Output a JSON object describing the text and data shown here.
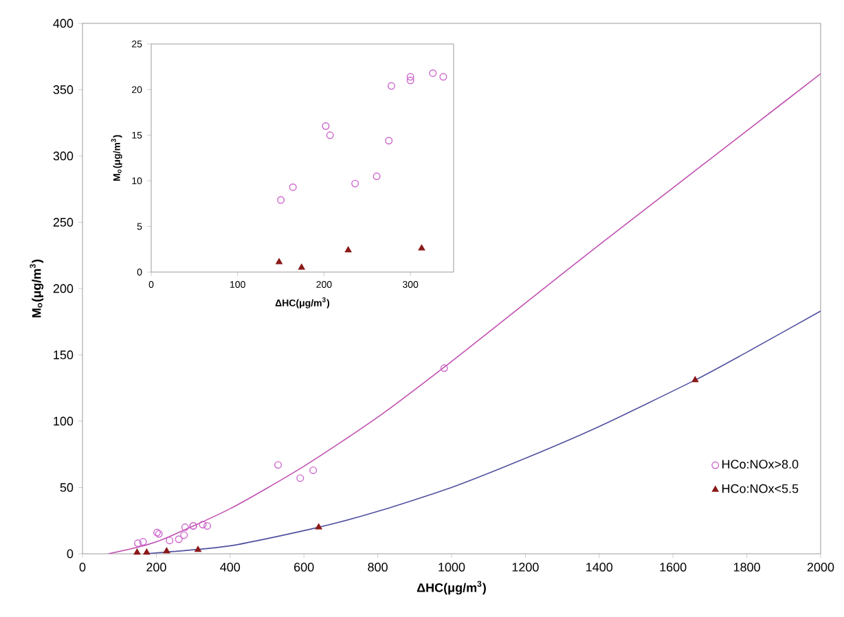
{
  "chart_data": [
    {
      "type": "scatter",
      "xlabel": "ΔHC(μg/m$^{3}$)",
      "ylabel": "M$_{o}$(μg/m$^{3}$)",
      "xlim": [
        0,
        2000
      ],
      "xticks": [
        0,
        200,
        400,
        600,
        800,
        1000,
        1200,
        1400,
        1600,
        1800,
        2000
      ],
      "ylim": [
        0,
        400
      ],
      "yticks": [
        0,
        50,
        100,
        150,
        200,
        250,
        300,
        350,
        400
      ],
      "legend": "bottom right",
      "series": [
        {
          "name": "HCo:NOx>8.0",
          "color": "#cc66cc",
          "marker": "circle",
          "x": [
            150,
            164,
            202,
            207,
            236,
            261,
            275,
            278,
            300,
            300,
            326,
            338,
            530,
            590,
            625,
            980
          ],
          "values": [
            8,
            9,
            16,
            15,
            10,
            11,
            14,
            20,
            21,
            21,
            22,
            21,
            67,
            57,
            63,
            140
          ]
        },
        {
          "name": "HCo:NOx<5.5",
          "color": "#8b1a1a",
          "marker": "triangle",
          "x": [
            148,
            174,
            228,
            313,
            640,
            1660
          ],
          "values": [
            1,
            1,
            2,
            3,
            20,
            131
          ]
        },
        {
          "type": "line",
          "color": "#c050b0",
          "marker": "none",
          "x": [
            70,
            200,
            400,
            600,
            800,
            1000,
            1200,
            1400,
            1600,
            1800,
            2000
          ],
          "values": [
            0,
            9,
            34,
            66,
            103,
            145,
            189,
            233,
            276,
            319,
            362
          ]
        },
        {
          "type": "line",
          "color": "#5050a0",
          "marker": "none",
          "x": [
            170,
            400,
            640,
            800,
            1000,
            1200,
            1400,
            1660,
            1800,
            2000
          ],
          "values": [
            0,
            6,
            20,
            32,
            50,
            72,
            96,
            131,
            152,
            183
          ]
        }
      ]
    },
    {
      "type": "scatter",
      "xlabel": "ΔHC(μg/m$^{3}$)",
      "ylabel": "M$_{o}$(μg/m$^{3}$)",
      "xlim": [
        0,
        350
      ],
      "xticks": [
        0,
        100,
        200,
        300
      ],
      "ylim": [
        0,
        25
      ],
      "yticks": [
        0,
        5,
        10,
        15,
        20,
        25
      ],
      "series": [
        {
          "color": "#cc66cc",
          "marker": "circle",
          "x": [
            150,
            164,
            202,
            207,
            236,
            261,
            275,
            278,
            300,
            300,
            326,
            338
          ],
          "values": [
            7.9,
            9.3,
            16.0,
            15.0,
            9.7,
            10.5,
            14.4,
            20.4,
            21.4,
            21.0,
            21.8,
            21.4
          ]
        },
        {
          "color": "#8b1a1a",
          "marker": "triangle",
          "x": [
            148,
            174,
            228,
            313
          ],
          "values": [
            1.1,
            0.5,
            2.4,
            2.6
          ]
        }
      ]
    }
  ]
}
